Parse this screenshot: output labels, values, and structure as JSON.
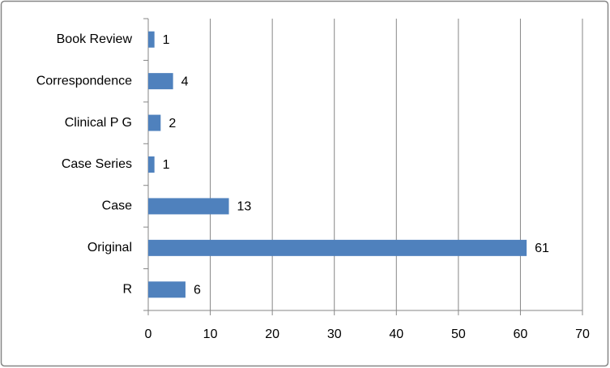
{
  "chart_data": {
    "type": "bar",
    "orientation": "horizontal",
    "categories": [
      "Book Review",
      "Correspondence",
      "Clinical P G",
      "Case Series",
      "Case",
      "Original",
      "R"
    ],
    "values": [
      1,
      4,
      2,
      1,
      13,
      61,
      6
    ],
    "color": "#4f81bd",
    "xlim": [
      0,
      70
    ],
    "xticks": [
      0,
      10,
      20,
      30,
      40,
      50,
      60,
      70
    ],
    "grid": true
  }
}
